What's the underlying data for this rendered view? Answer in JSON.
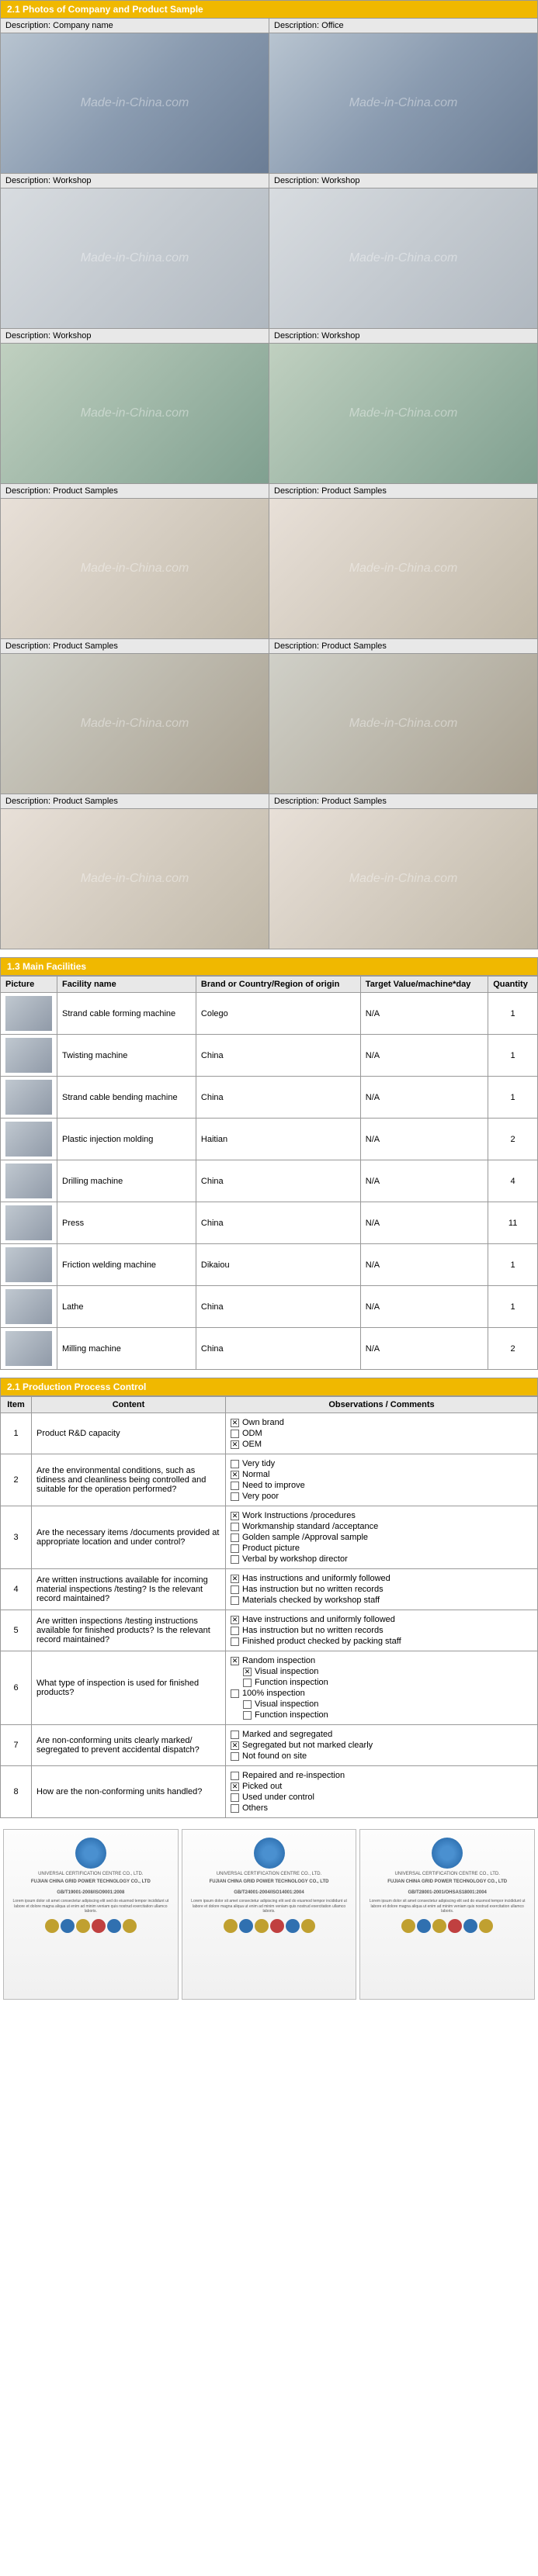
{
  "section1": {
    "title": "2.1 Photos of Company and Product Sample",
    "watermark": "Made-in-China.com",
    "rows": [
      {
        "left": {
          "label": "Description: Company name",
          "cls": ""
        },
        "right": {
          "label": "Description: Office",
          "cls": ""
        }
      },
      {
        "left": {
          "label": "Description: Workshop",
          "cls": "workshop"
        },
        "right": {
          "label": "Description: Workshop",
          "cls": "workshop"
        }
      },
      {
        "left": {
          "label": "Description: Workshop",
          "cls": "workshop2"
        },
        "right": {
          "label": "Description: Workshop",
          "cls": "workshop2"
        }
      },
      {
        "left": {
          "label": "Description: Product Samples",
          "cls": "samples"
        },
        "right": {
          "label": "Description: Product Samples",
          "cls": "samples"
        }
      },
      {
        "left": {
          "label": "Description: Product Samples",
          "cls": "samples2"
        },
        "right": {
          "label": "Description: Product Samples",
          "cls": "samples2"
        }
      },
      {
        "left": {
          "label": "Description: Product Samples",
          "cls": "samples"
        },
        "right": {
          "label": "Description: Product Samples",
          "cls": "samples"
        }
      }
    ]
  },
  "section2": {
    "title": "1.3 Main Facilities",
    "headers": [
      "Picture",
      "Facility name",
      "Brand or Country/Region of origin",
      "Target Value/machine*day",
      "Quantity"
    ],
    "rows": [
      {
        "name": "Strand cable forming machine",
        "brand": "Colego",
        "target": "N/A",
        "qty": "1"
      },
      {
        "name": "Twisting machine",
        "brand": "China",
        "target": "N/A",
        "qty": "1"
      },
      {
        "name": "Strand cable bending machine",
        "brand": "China",
        "target": "N/A",
        "qty": "1"
      },
      {
        "name": "Plastic injection molding",
        "brand": "Haitian",
        "target": "N/A",
        "qty": "2"
      },
      {
        "name": "Drilling machine",
        "brand": "China",
        "target": "N/A",
        "qty": "4"
      },
      {
        "name": "Press",
        "brand": "China",
        "target": "N/A",
        "qty": "11"
      },
      {
        "name": "Friction welding machine",
        "brand": "Dikaiou",
        "target": "N/A",
        "qty": "1"
      },
      {
        "name": "Lathe",
        "brand": "China",
        "target": "N/A",
        "qty": "1"
      },
      {
        "name": "Milling machine",
        "brand": "China",
        "target": "N/A",
        "qty": "2"
      }
    ]
  },
  "section3": {
    "title": "2.1 Production Process Control",
    "headers": [
      "Item",
      "Content",
      "Observations / Comments"
    ],
    "rows": [
      {
        "item": "1",
        "content": "Product R&D capacity",
        "opts": [
          {
            "c": true,
            "t": "Own brand"
          },
          {
            "c": false,
            "t": "ODM"
          },
          {
            "c": true,
            "t": "OEM"
          }
        ]
      },
      {
        "item": "2",
        "content": "Are the environmental conditions, such as tidiness and cleanliness being controlled and suitable for the operation performed?",
        "opts": [
          {
            "c": false,
            "t": "Very tidy"
          },
          {
            "c": true,
            "t": "Normal"
          },
          {
            "c": false,
            "t": "Need to improve"
          },
          {
            "c": false,
            "t": "Very poor"
          }
        ]
      },
      {
        "item": "3",
        "content": "Are the necessary items /documents provided at appropriate location and under control?",
        "opts": [
          {
            "c": true,
            "t": "Work Instructions /procedures"
          },
          {
            "c": false,
            "t": "Workmanship standard /acceptance"
          },
          {
            "c": false,
            "t": "Golden sample /Approval sample"
          },
          {
            "c": false,
            "t": "Product picture"
          },
          {
            "c": false,
            "t": "Verbal by workshop director"
          }
        ]
      },
      {
        "item": "4",
        "content": "Are written instructions available for incoming material inspections /testing? Is the relevant record maintained?",
        "opts": [
          {
            "c": true,
            "t": "Has instructions and uniformly followed"
          },
          {
            "c": false,
            "t": "Has instruction but no written records"
          },
          {
            "c": false,
            "t": "Materials checked by workshop staff"
          }
        ]
      },
      {
        "item": "5",
        "content": "Are written inspections /testing instructions available for finished products? Is the relevant record maintained?",
        "opts": [
          {
            "c": true,
            "t": "Have instructions and uniformly followed"
          },
          {
            "c": false,
            "t": "Has instruction but no written records"
          },
          {
            "c": false,
            "t": "Finished product checked by packing staff"
          }
        ]
      },
      {
        "item": "6",
        "content": "What type of inspection is used for finished products?",
        "opts": [
          {
            "c": true,
            "t": "Random inspection"
          },
          {
            "c": true,
            "t": "Visual inspection",
            "indent": true
          },
          {
            "c": false,
            "t": "Function inspection",
            "indent": true
          },
          {
            "c": false,
            "t": "100% inspection"
          },
          {
            "c": false,
            "t": "Visual inspection",
            "indent": true
          },
          {
            "c": false,
            "t": "Function inspection",
            "indent": true
          }
        ]
      },
      {
        "item": "7",
        "content": "Are non-conforming units clearly marked/ segregated to prevent accidental dispatch?",
        "opts": [
          {
            "c": false,
            "t": "Marked and segregated"
          },
          {
            "c": true,
            "t": "Segregated but not marked clearly"
          },
          {
            "c": false,
            "t": "Not found on site"
          }
        ]
      },
      {
        "item": "8",
        "content": "How are the non-conforming units handled?",
        "opts": [
          {
            "c": false,
            "t": "Repaired and re-inspection"
          },
          {
            "c": true,
            "t": "Picked out"
          },
          {
            "c": false,
            "t": "Used under control"
          },
          {
            "c": false,
            "t": "Others"
          }
        ]
      }
    ]
  },
  "certs": {
    "items": [
      {
        "top": "UNIVERSAL CERTIFICATION CENTRE CO., LTD.",
        "mid": "FUJIAN CHINA GRID POWER TECHNOLOGY CO., LTD",
        "std": "GB/T19001-2008/ISO9001:2008"
      },
      {
        "top": "UNIVERSAL CERTIFICATION CENTRE CO., LTD.",
        "mid": "FUJIAN CHINA GRID POWER TECHNOLOGY CO., LTD",
        "std": "GB/T24001-2004/ISO14001:2004"
      },
      {
        "top": "UNIVERSAL CERTIFICATION CENTRE CO., LTD.",
        "mid": "FUJIAN CHINA GRID POWER TECHNOLOGY CO., LTD",
        "std": "GB/T28001-2001/OHSAS18001:2004"
      }
    ]
  }
}
